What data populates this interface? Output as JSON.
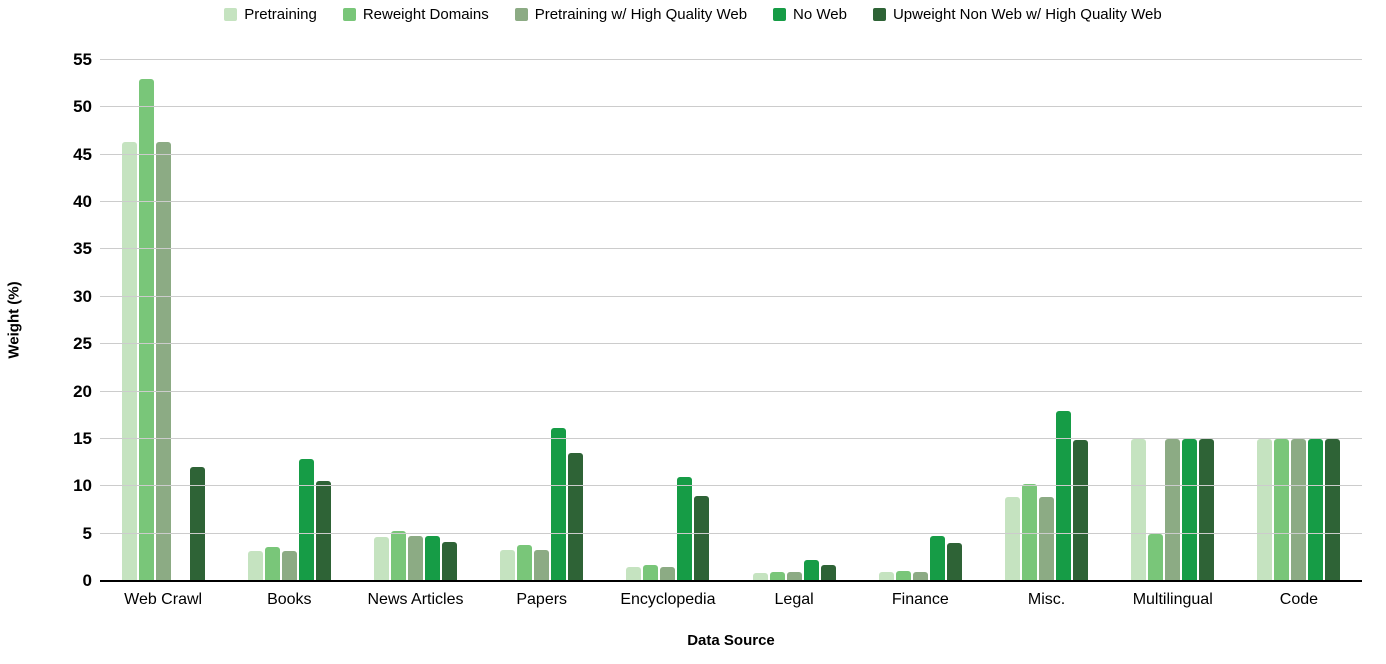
{
  "chart_data": {
    "type": "bar",
    "title": "",
    "xlabel": "Data Source",
    "ylabel": "Weight (%)",
    "ylim": [
      0,
      55
    ],
    "yticks": [
      0,
      5,
      10,
      15,
      20,
      25,
      30,
      35,
      40,
      45,
      50,
      55
    ],
    "grid": true,
    "legend_position": "top",
    "categories": [
      "Web Crawl",
      "Books",
      "News Articles",
      "Papers",
      "Encyclopedia",
      "Legal",
      "Finance",
      "Misc.",
      "Multilingual",
      "Code"
    ],
    "series": [
      {
        "name": "Pretraining",
        "color": "#c5e3c0",
        "values": [
          46.3,
          3.2,
          4.6,
          3.3,
          1.5,
          0.8,
          0.9,
          8.9,
          15,
          15
        ]
      },
      {
        "name": "Reweight Domains",
        "color": "#79c679",
        "values": [
          53,
          3.6,
          5.3,
          3.8,
          1.7,
          1.0,
          1.1,
          10.2,
          5,
          15
        ]
      },
      {
        "name": "Pretraining w/ High Quality Web",
        "color": "#8cab84",
        "values": [
          46.3,
          3.2,
          4.7,
          3.3,
          1.5,
          0.9,
          0.9,
          8.9,
          15,
          15
        ]
      },
      {
        "name": "No Web",
        "color": "#169c46",
        "values": [
          0,
          12.9,
          4.8,
          16.2,
          11,
          2.2,
          4.7,
          18,
          15,
          15
        ]
      },
      {
        "name": "Upweight Non Web w/ High Quality Web",
        "color": "#2e6336",
        "values": [
          12,
          10.6,
          4.1,
          13.5,
          9,
          1.7,
          4,
          14.9,
          15,
          15
        ]
      }
    ],
    "gridline_color": "#cccccc",
    "baseline_color": "#000000"
  }
}
